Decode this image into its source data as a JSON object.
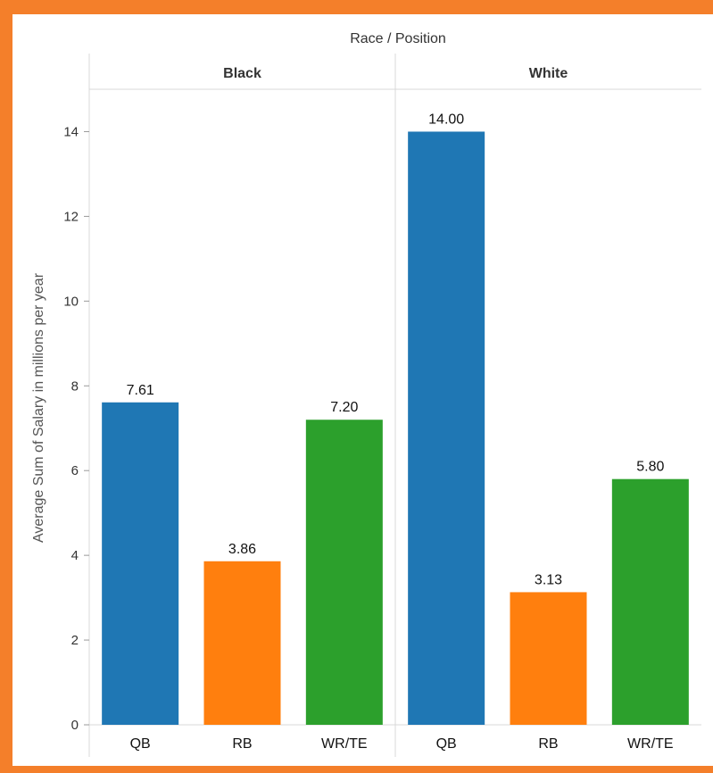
{
  "chart_data": {
    "type": "bar",
    "header": "Race / Position",
    "ylabel": "Average Sum of Salary in millions per year",
    "ylim": [
      0,
      15
    ],
    "yticks": [
      0,
      2,
      4,
      6,
      8,
      10,
      12,
      14
    ],
    "categories": [
      "QB",
      "RB",
      "WR/TE"
    ],
    "category_colors": [
      "#1f77b4",
      "#ff7f0e",
      "#2ca02c"
    ],
    "panels": [
      {
        "name": "Black",
        "values": [
          7.61,
          3.86,
          7.2
        ],
        "labels": [
          "7.61",
          "3.86",
          "7.20"
        ]
      },
      {
        "name": "White",
        "values": [
          14.0,
          3.13,
          5.8
        ],
        "labels": [
          "14.00",
          "3.13",
          "5.80"
        ]
      }
    ],
    "grid": false,
    "legend": "none"
  }
}
